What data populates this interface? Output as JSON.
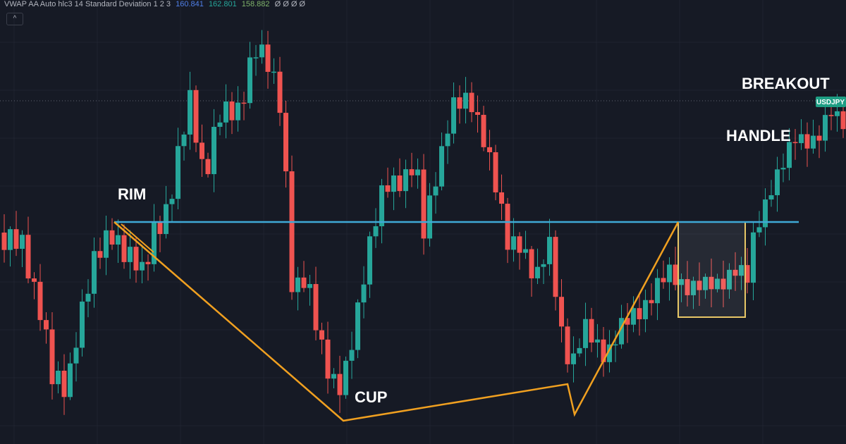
{
  "header": {
    "indicator": "VWAP AA Auto hlc3 14 Standard Deviation 1 2 3",
    "values": [
      "160.841",
      "162.801",
      "158.882"
    ],
    "extras": "Ø Ø Ø Ø"
  },
  "annotations": {
    "rim": "RIM",
    "cup": "CUP",
    "handle": "HANDLE",
    "breakout": "BREAKOUT"
  },
  "price_tag": "USDJPY"
}
